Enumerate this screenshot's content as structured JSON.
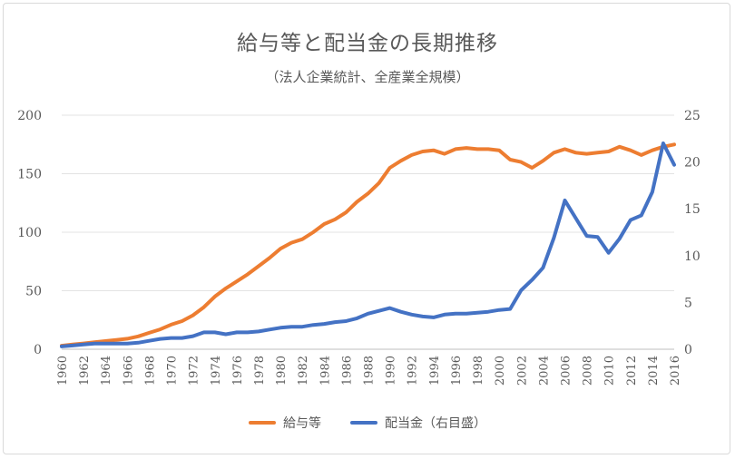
{
  "chart_data": {
    "type": "line",
    "title": "給与等と配当金の長期推移",
    "subtitle": "（法人企業統計、全産業全規模）",
    "x": [
      1960,
      1961,
      1962,
      1963,
      1964,
      1965,
      1966,
      1967,
      1968,
      1969,
      1970,
      1971,
      1972,
      1973,
      1974,
      1975,
      1976,
      1977,
      1978,
      1979,
      1980,
      1981,
      1982,
      1983,
      1984,
      1985,
      1986,
      1987,
      1988,
      1989,
      1990,
      1991,
      1992,
      1993,
      1994,
      1995,
      1996,
      1997,
      1998,
      1999,
      2000,
      2001,
      2002,
      2003,
      2004,
      2005,
      2006,
      2007,
      2008,
      2009,
      2010,
      2011,
      2012,
      2013,
      2014,
      2015,
      2016
    ],
    "x_tick_labels": [
      "1960",
      "1962",
      "1964",
      "1966",
      "1968",
      "1970",
      "1972",
      "1974",
      "1976",
      "1978",
      "1980",
      "1982",
      "1984",
      "1986",
      "1988",
      "1990",
      "1992",
      "1994",
      "1996",
      "1998",
      "2000",
      "2002",
      "2004",
      "2006",
      "2008",
      "2010",
      "2012",
      "2014",
      "2016"
    ],
    "y_left": {
      "ticks": [
        "0",
        "50",
        "100",
        "150",
        "200"
      ],
      "ylim": [
        0,
        200
      ]
    },
    "y_right": {
      "ticks": [
        "0",
        "5",
        "10",
        "15",
        "20",
        "25"
      ],
      "ylim": [
        0,
        25
      ]
    },
    "grid": true,
    "legend_position": "bottom",
    "series": [
      {
        "name": "給与等",
        "axis": "left",
        "color": "#ED7D31",
        "values": [
          3,
          4,
          5,
          6,
          7,
          8,
          9,
          11,
          14,
          17,
          21,
          24,
          29,
          36,
          45,
          52,
          58,
          64,
          71,
          78,
          86,
          91,
          94,
          100,
          107,
          111,
          117,
          126,
          133,
          142,
          155,
          161,
          166,
          169,
          170,
          167,
          171,
          172,
          171,
          171,
          170,
          162,
          160,
          155,
          161,
          168,
          171,
          168,
          167,
          168,
          169,
          173,
          170,
          166,
          170,
          173,
          175
        ]
      },
      {
        "name": "配当金（右目盛）",
        "axis": "right",
        "color": "#4472C4",
        "values": [
          0.3,
          0.4,
          0.5,
          0.6,
          0.6,
          0.6,
          0.6,
          0.7,
          0.9,
          1.1,
          1.2,
          1.2,
          1.4,
          1.8,
          1.8,
          1.6,
          1.8,
          1.8,
          1.9,
          2.1,
          2.3,
          2.4,
          2.4,
          2.6,
          2.7,
          2.9,
          3.0,
          3.3,
          3.8,
          4.1,
          4.4,
          4.0,
          3.7,
          3.5,
          3.4,
          3.7,
          3.8,
          3.8,
          3.9,
          4.0,
          4.2,
          4.3,
          6.3,
          7.4,
          8.7,
          11.9,
          15.9,
          14.0,
          12.1,
          12.0,
          10.3,
          11.8,
          13.8,
          14.3,
          16.8,
          22.0,
          19.7
        ]
      }
    ]
  }
}
